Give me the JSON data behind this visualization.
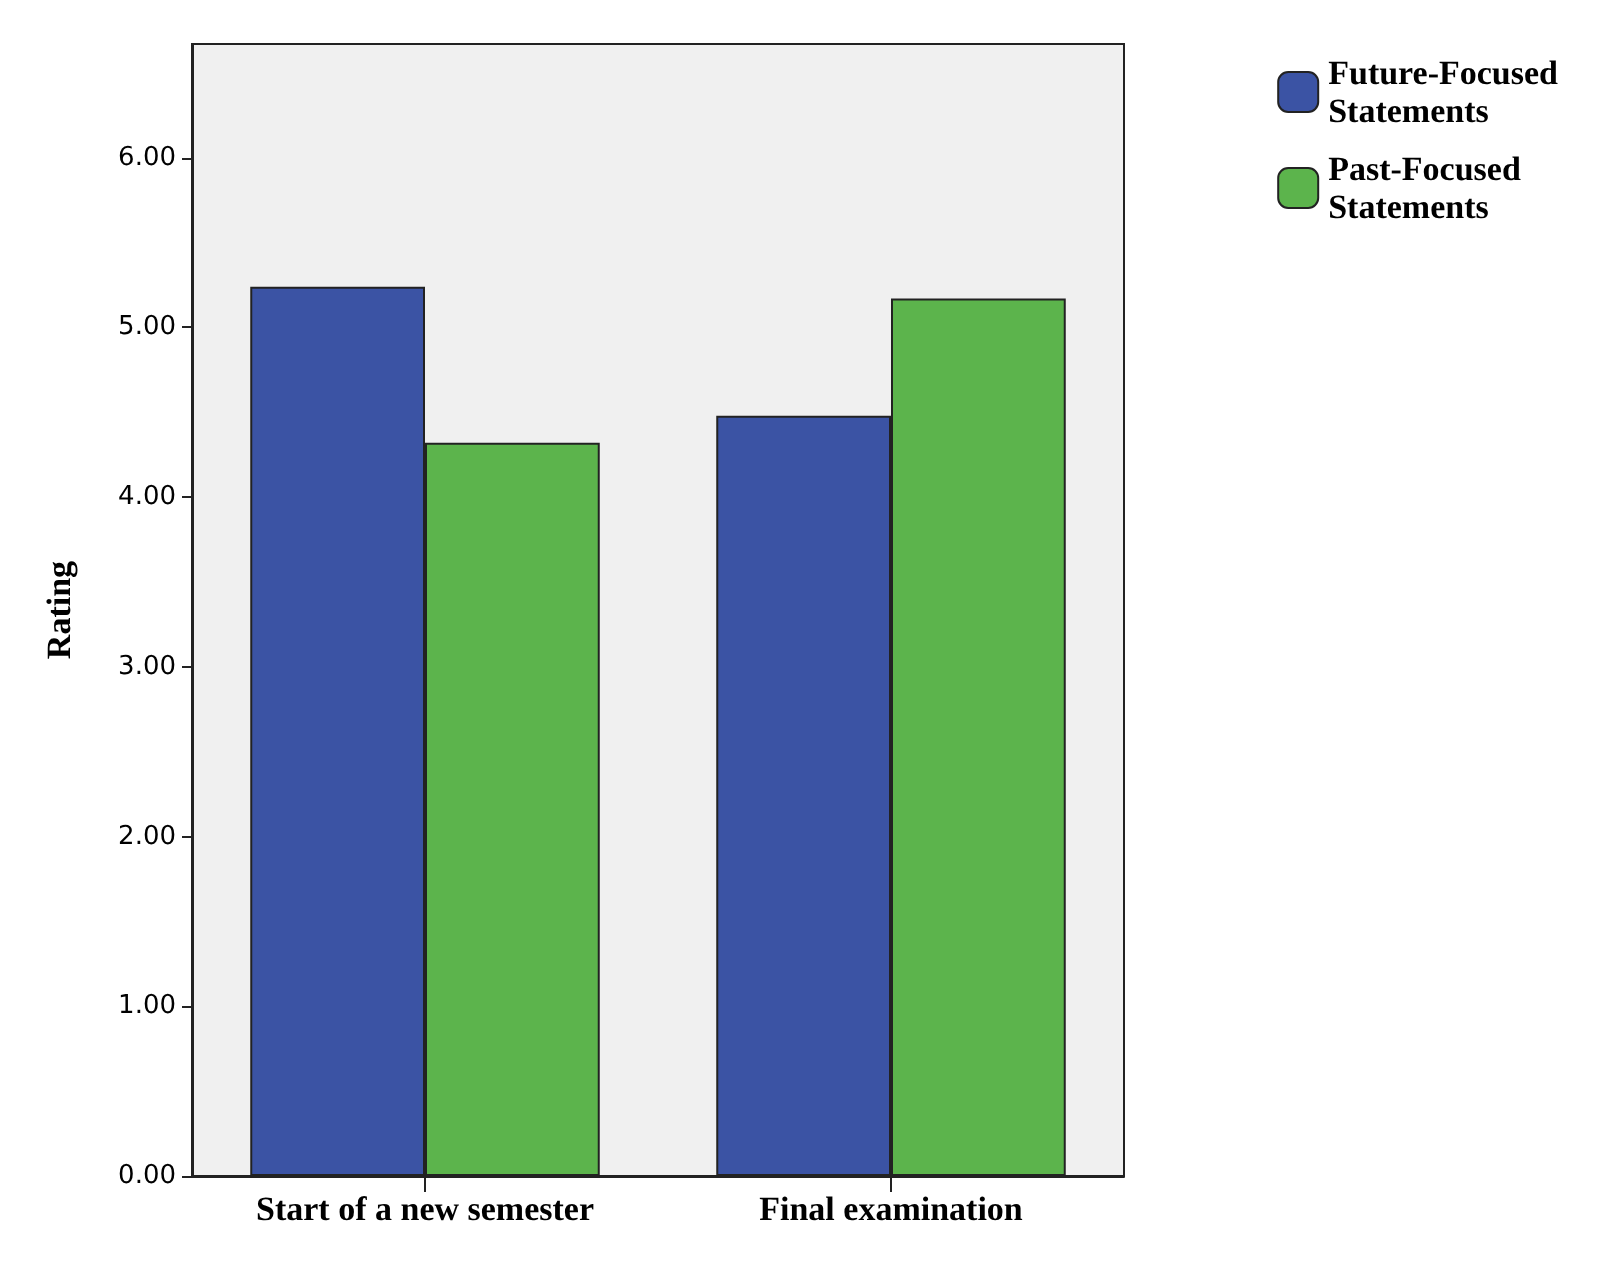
{
  "chart_data": {
    "type": "bar",
    "ylabel": "Rating",
    "categories": [
      "Start of a new semester",
      "Final examination"
    ],
    "series": [
      {
        "name": "Future-Focused\nStatements",
        "color": "#3b53a4",
        "values": [
          5.24,
          4.48
        ]
      },
      {
        "name": "Past-Focused\nStatements",
        "color": "#5cb44c",
        "values": [
          4.32,
          5.17
        ]
      }
    ],
    "ylim": [
      0,
      6.67
    ],
    "yticks": [
      {
        "value": 0,
        "label": "0.00"
      },
      {
        "value": 1,
        "label": "1.00"
      },
      {
        "value": 2,
        "label": "2.00"
      },
      {
        "value": 3,
        "label": "3.00"
      },
      {
        "value": 4,
        "label": "4.00"
      },
      {
        "value": 5,
        "label": "5.00"
      },
      {
        "value": 6,
        "label": "6.00"
      }
    ],
    "grid": false,
    "legend": "right"
  }
}
